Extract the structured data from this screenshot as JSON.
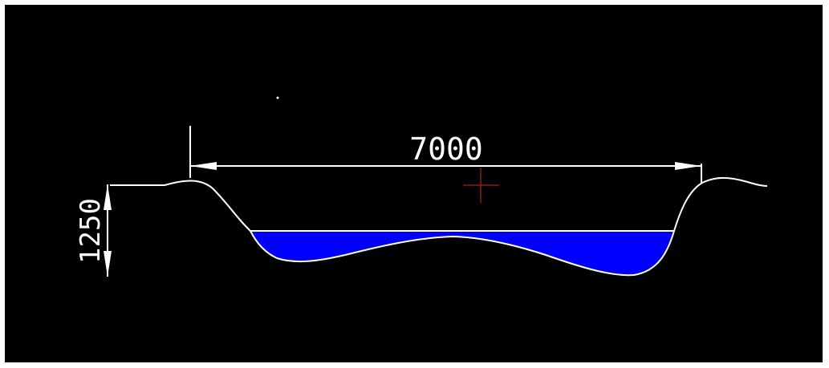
{
  "drawing": {
    "width_dimension": "7000",
    "depth_dimension": "1250",
    "colors": {
      "background": "#000000",
      "line": "#ffffff",
      "water": "#0000ff",
      "crosshair": "#8b1a1a"
    }
  }
}
